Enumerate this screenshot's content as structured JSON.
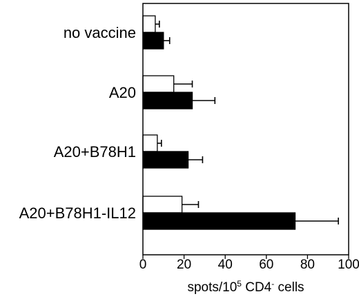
{
  "chart_data": {
    "type": "bar",
    "orientation": "horizontal",
    "categories": [
      "no vaccine",
      "A20",
      "A20+B78H1",
      "A20+B78H1-IL12"
    ],
    "series": [
      {
        "fill": "white",
        "values": [
          6,
          15,
          7,
          19
        ],
        "errors": [
          2,
          9,
          2,
          8
        ]
      },
      {
        "fill": "black",
        "values": [
          10,
          24,
          22,
          74
        ],
        "errors": [
          3,
          11,
          7,
          21
        ]
      }
    ],
    "xlim": [
      0,
      100
    ],
    "xticks": [
      0,
      20,
      40,
      60,
      80,
      100
    ],
    "xlabel": {
      "parts": [
        {
          "text": "spots/10"
        },
        {
          "text": "5",
          "sup": true
        },
        {
          "text": " CD4"
        },
        {
          "text": "-",
          "sup": true
        },
        {
          "text": " cells"
        }
      ]
    },
    "colors": {
      "white_fill": "#ffffff",
      "black_fill": "#000000",
      "stroke": "#000000"
    },
    "grid": false,
    "legend": "none"
  }
}
